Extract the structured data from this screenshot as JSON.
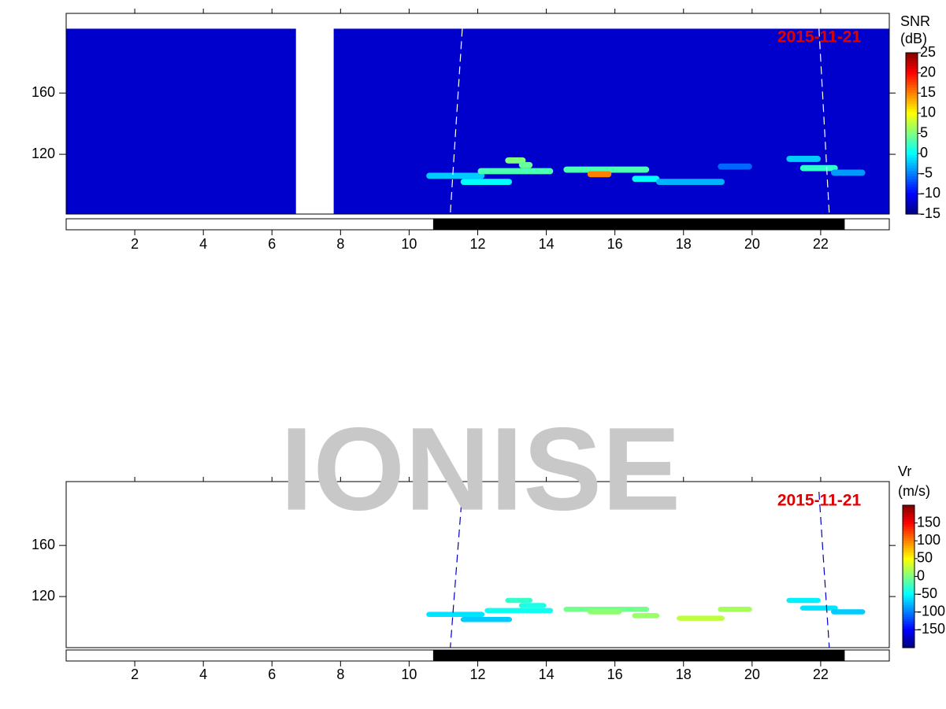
{
  "watermark": "IONISE",
  "chart_data": [
    {
      "type": "heatmap",
      "annotation": "2015-11-21",
      "annotation_color": "#e00000",
      "colorbar_label": [
        "SNR",
        "(dB)"
      ],
      "colorscale": "jet",
      "xlim": [
        0,
        24
      ],
      "xticks": [
        2,
        4,
        6,
        8,
        10,
        12,
        14,
        16,
        18,
        20,
        22
      ],
      "ylim": [
        81,
        212
      ],
      "yticks": [
        120,
        160
      ],
      "clim": [
        -15,
        25
      ],
      "cticks": [
        25,
        20,
        15,
        10,
        5,
        0,
        -5,
        -10,
        -15
      ],
      "background": -12,
      "gate_range": [
        81,
        202
      ],
      "gap": [
        6.7,
        7.8
      ],
      "night": [
        10.7,
        22.7
      ],
      "terminators": {
        "x_top": [
          11.55,
          21.95
        ],
        "x_bottom": [
          11.2,
          22.25
        ],
        "color": "#ffffff"
      },
      "echoes": {
        "x_start": [
          10.5,
          11.5,
          12.0,
          12.8,
          13.2,
          14.5,
          15.2,
          16.5,
          17.2,
          19.0,
          21.0,
          21.4,
          22.3
        ],
        "x_end": [
          12.2,
          13.0,
          14.2,
          13.4,
          13.6,
          17.0,
          15.9,
          17.3,
          19.2,
          20.0,
          22.0,
          22.5,
          23.3
        ],
        "range": [
          106,
          102,
          109,
          116,
          113,
          110,
          107,
          104,
          102,
          112,
          117,
          111,
          108
        ],
        "values": [
          -2,
          0,
          3,
          5,
          4,
          3,
          15,
          0,
          -3,
          -6,
          -2,
          2,
          -4
        ]
      }
    },
    {
      "type": "heatmap",
      "annotation": "2015-11-21",
      "annotation_color": "#e00000",
      "colorbar_label": [
        "Vr",
        "(m/s)"
      ],
      "colorscale": "jet",
      "xlim": [
        0,
        24
      ],
      "xticks": [
        2,
        4,
        6,
        8,
        10,
        12,
        14,
        16,
        18,
        20,
        22
      ],
      "ylim": [
        80,
        210
      ],
      "yticks": [
        120,
        160
      ],
      "clim": [
        -200,
        200
      ],
      "cticks": [
        150,
        100,
        50,
        0,
        -50,
        -100,
        -150
      ],
      "gate_range": [
        80,
        202
      ],
      "night": [
        10.7,
        22.7
      ],
      "terminators": {
        "x_top": [
          11.55,
          21.95
        ],
        "x_bottom": [
          11.2,
          22.25
        ],
        "color": "#0000cc"
      },
      "echoes": {
        "x_start": [
          10.5,
          11.5,
          12.2,
          12.8,
          13.2,
          14.5,
          15.2,
          16.5,
          17.8,
          19.0,
          21.0,
          21.4,
          22.3
        ],
        "x_end": [
          12.2,
          13.0,
          14.2,
          13.6,
          14.0,
          17.0,
          16.2,
          17.3,
          19.2,
          20.0,
          22.0,
          22.5,
          23.3
        ],
        "range": [
          106,
          102,
          109,
          117,
          113,
          110,
          108,
          105,
          103,
          110,
          117,
          111,
          108
        ],
        "values": [
          -60,
          -70,
          -45,
          -30,
          -40,
          -5,
          5,
          10,
          25,
          15,
          -55,
          -60,
          -70
        ]
      }
    }
  ]
}
